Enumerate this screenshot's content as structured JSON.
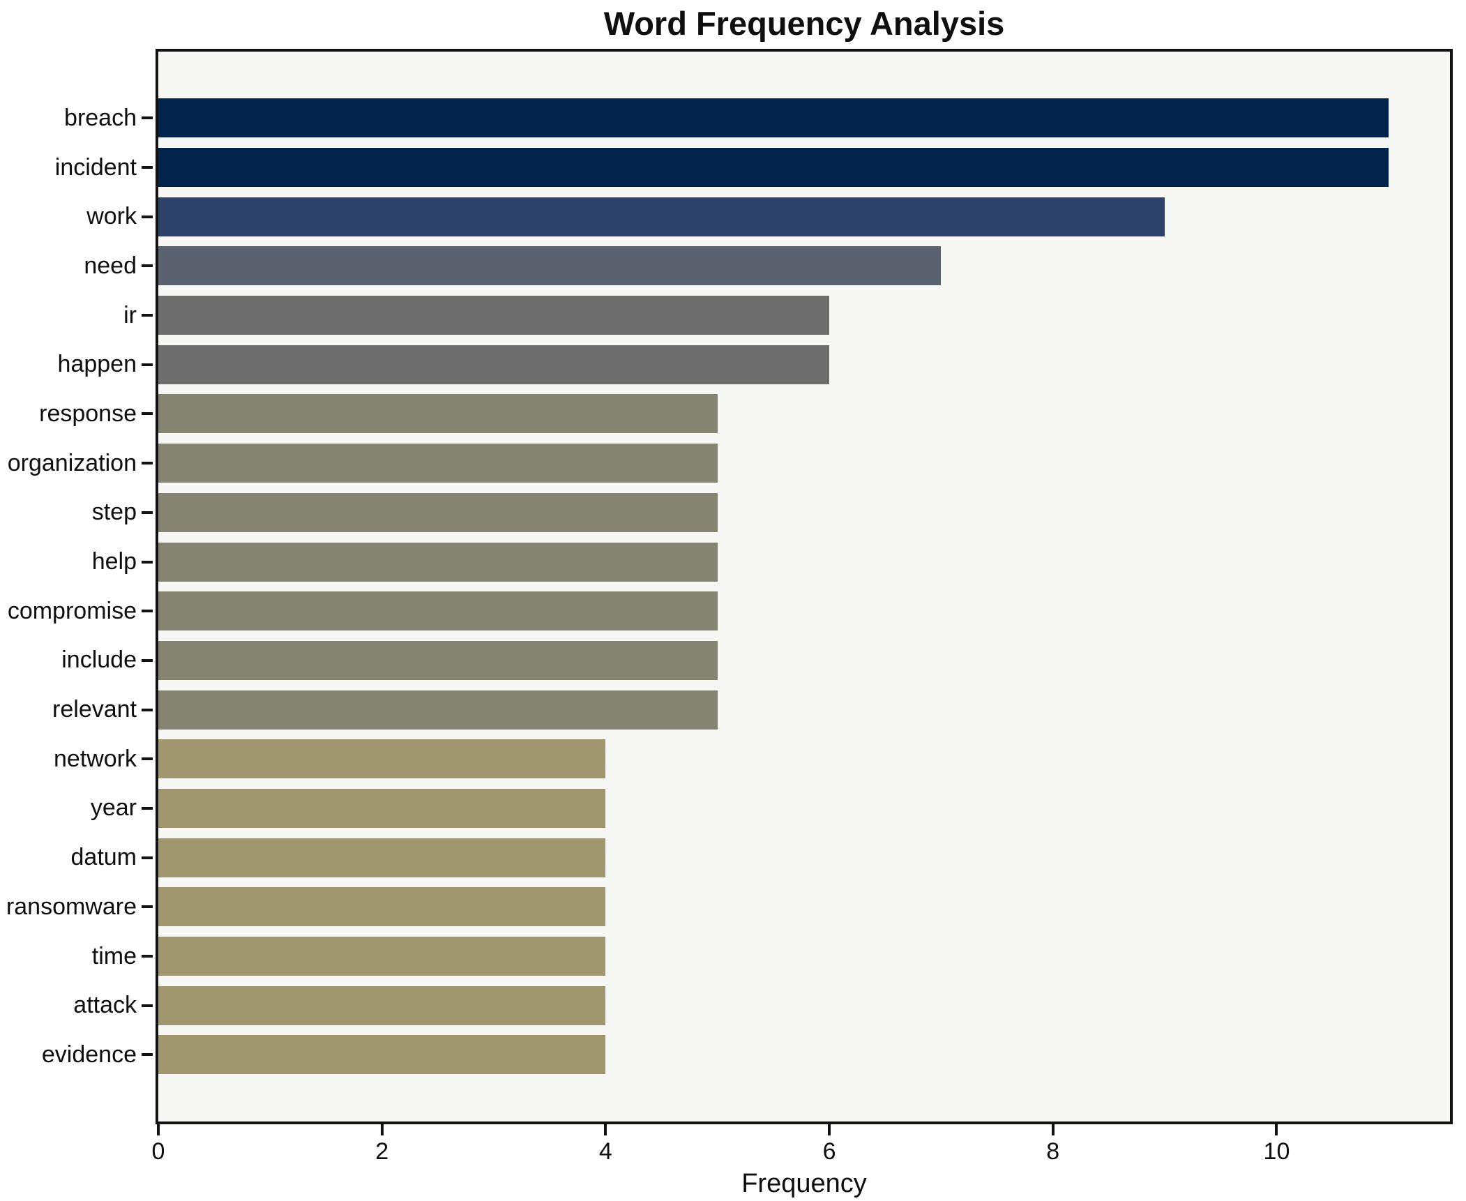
{
  "title": "Word Frequency Analysis",
  "chart_data": {
    "type": "bar",
    "orientation": "horizontal",
    "title": "Word Frequency Analysis",
    "xlabel": "Frequency",
    "ylabel": "",
    "categories": [
      "breach",
      "incident",
      "work",
      "need",
      "ir",
      "happen",
      "response",
      "organization",
      "step",
      "help",
      "compromise",
      "include",
      "relevant",
      "network",
      "year",
      "datum",
      "ransomware",
      "time",
      "attack",
      "evidence"
    ],
    "values": [
      11,
      11,
      9,
      7,
      6,
      6,
      5,
      5,
      5,
      5,
      5,
      5,
      5,
      4,
      4,
      4,
      4,
      4,
      4,
      4
    ],
    "bar_colors": [
      "#02234c",
      "#02234c",
      "#2f4269",
      "#5c6170",
      "#6e6e6f",
      "#6e6e6f",
      "#858372",
      "#858372",
      "#858372",
      "#858372",
      "#858372",
      "#858372",
      "#858372",
      "#a0966f",
      "#a0966f",
      "#a0966f",
      "#a0966f",
      "#a0966f",
      "#a0966f",
      "#a0966f"
    ],
    "x_ticks": [
      0,
      2,
      4,
      6,
      8,
      10
    ],
    "xlim": [
      0,
      11.55
    ],
    "grid": false,
    "legend": "none",
    "plot_background": "#f7f7f6",
    "spine_color": "#121212",
    "text_color": "#0f0f0f"
  }
}
